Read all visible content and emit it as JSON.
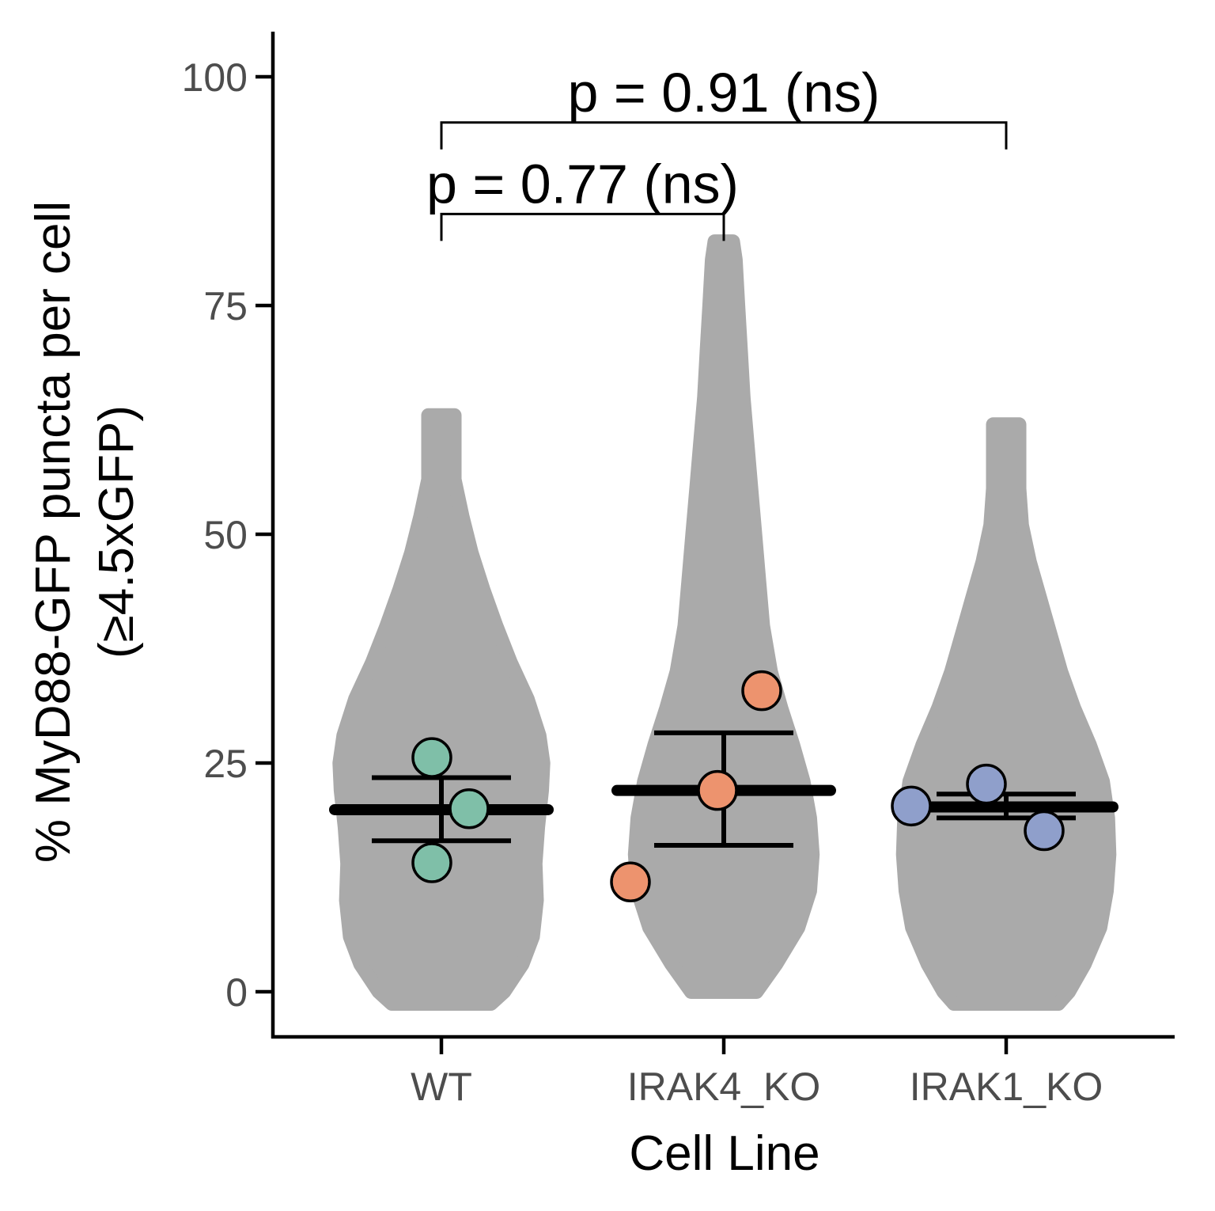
{
  "chart_data": {
    "type": "violin",
    "xlabel": "Cell Line",
    "ylabel_line1": "% MyD88-GFP puncta per cell",
    "ylabel_line2": "(≥4.5xGFP)",
    "categories": [
      "WT",
      "IRAK4_KO",
      "IRAK1_KO"
    ],
    "ylim": [
      -5,
      105
    ],
    "yticks": [
      0,
      25,
      50,
      75,
      100
    ],
    "grid": false,
    "legend": "none",
    "violin_color": "#aaaaaa",
    "groups": [
      {
        "name": "WT",
        "color": "#7fbfa8",
        "points": [
          25.6,
          20.0,
          14.1
        ],
        "mean": 19.9,
        "error_low": 16.5,
        "error_high": 23.4,
        "violin": {
          "min": -1.3,
          "max": 63,
          "profile": [
            [
              -1.3,
              0.38
            ],
            [
              0,
              0.48
            ],
            [
              3,
              0.62
            ],
            [
              6,
              0.7
            ],
            [
              10,
              0.73
            ],
            [
              14,
              0.72
            ],
            [
              18,
              0.74
            ],
            [
              22,
              0.77
            ],
            [
              25,
              0.78
            ],
            [
              28,
              0.75
            ],
            [
              32,
              0.66
            ],
            [
              36,
              0.53
            ],
            [
              40,
              0.42
            ],
            [
              44,
              0.32
            ],
            [
              48,
              0.23
            ],
            [
              52,
              0.16
            ],
            [
              56,
              0.1
            ],
            [
              60,
              0.1
            ],
            [
              63,
              0.1
            ]
          ]
        }
      },
      {
        "name": "IRAK4_KO",
        "color": "#ed936e",
        "points": [
          12.0,
          22.0,
          32.9
        ],
        "mean": 22.0,
        "error_low": 16.0,
        "error_high": 28.3,
        "violin": {
          "min": 0,
          "max": 82,
          "profile": [
            [
              0,
              0.25
            ],
            [
              3,
              0.4
            ],
            [
              7,
              0.57
            ],
            [
              11,
              0.66
            ],
            [
              15,
              0.68
            ],
            [
              19,
              0.66
            ],
            [
              23,
              0.61
            ],
            [
              27,
              0.53
            ],
            [
              31,
              0.44
            ],
            [
              35,
              0.36
            ],
            [
              40,
              0.3
            ],
            [
              45,
              0.27
            ],
            [
              50,
              0.24
            ],
            [
              55,
              0.21
            ],
            [
              60,
              0.18
            ],
            [
              65,
              0.15
            ],
            [
              70,
              0.13
            ],
            [
              75,
              0.11
            ],
            [
              80,
              0.09
            ],
            [
              82,
              0.07
            ]
          ]
        }
      },
      {
        "name": "IRAK1_KO",
        "color": "#8f9fcb",
        "points": [
          20.3,
          22.7,
          17.6
        ],
        "mean": 20.2,
        "error_low": 19.0,
        "error_high": 21.6,
        "violin": {
          "min": -1.3,
          "max": 62,
          "profile": [
            [
              -1.3,
              0.4
            ],
            [
              0,
              0.48
            ],
            [
              3,
              0.6
            ],
            [
              7,
              0.72
            ],
            [
              11,
              0.77
            ],
            [
              15,
              0.79
            ],
            [
              19,
              0.78
            ],
            [
              23,
              0.74
            ],
            [
              27,
              0.64
            ],
            [
              31,
              0.52
            ],
            [
              35,
              0.42
            ],
            [
              39,
              0.34
            ],
            [
              43,
              0.26
            ],
            [
              47,
              0.18
            ],
            [
              51,
              0.12
            ],
            [
              55,
              0.1
            ],
            [
              59,
              0.1
            ],
            [
              62,
              0.1
            ]
          ]
        }
      }
    ],
    "comparisons": [
      {
        "from": "WT",
        "to": "IRAK4_KO",
        "y": 85,
        "label": "p = 0.77 (ns)"
      },
      {
        "from": "WT",
        "to": "IRAK1_KO",
        "y": 95,
        "label": "p = 0.91 (ns)"
      }
    ]
  }
}
